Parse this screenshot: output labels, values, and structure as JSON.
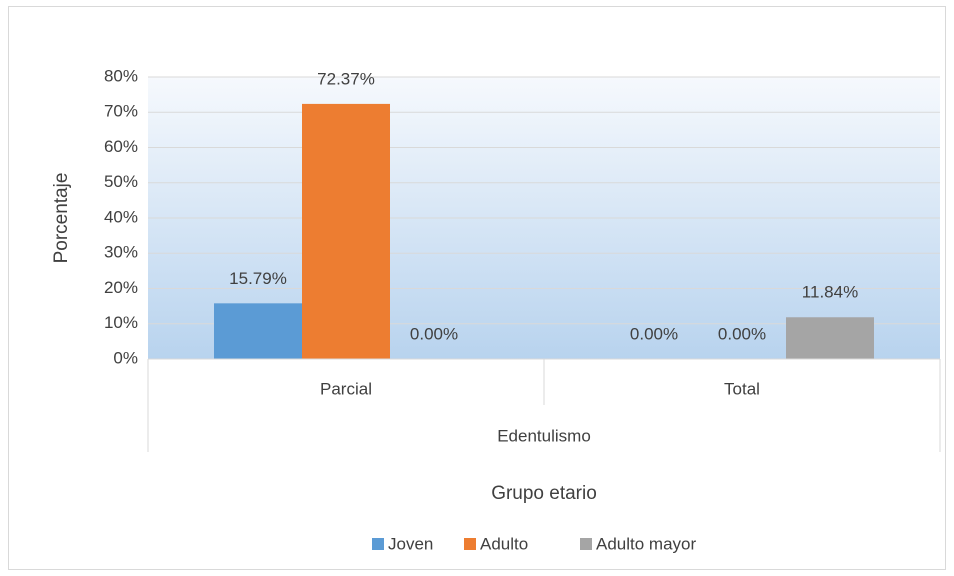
{
  "chart_data": {
    "type": "bar",
    "ylabel": "Porcentaje",
    "xlabel": "Grupo etario",
    "group_label": "Edentulismo",
    "categories": [
      "Parcial",
      "Total"
    ],
    "series": [
      {
        "name": "Joven",
        "color": "#5b9bd5",
        "values": [
          15.79,
          0
        ],
        "value_labels": [
          "15.79%",
          "0.00%"
        ]
      },
      {
        "name": "Adulto",
        "color": "#ed7d31",
        "values": [
          72.37,
          0
        ],
        "value_labels": [
          "72.37%",
          "0.00%"
        ]
      },
      {
        "name": "Adulto mayor",
        "color": "#a5a5a5",
        "values": [
          0,
          11.84
        ],
        "value_labels": [
          "0.00%",
          "11.84%"
        ]
      }
    ],
    "ylim": [
      0,
      80
    ],
    "yticks": [
      {
        "value": 0,
        "label": "0%"
      },
      {
        "value": 10,
        "label": "10%"
      },
      {
        "value": 20,
        "label": "20%"
      },
      {
        "value": 30,
        "label": "30%"
      },
      {
        "value": 40,
        "label": "40%"
      },
      {
        "value": 50,
        "label": "50%"
      },
      {
        "value": 60,
        "label": "60%"
      },
      {
        "value": 70,
        "label": "70%"
      },
      {
        "value": 80,
        "label": "80%"
      }
    ],
    "grid": true,
    "legend": "bottom"
  }
}
